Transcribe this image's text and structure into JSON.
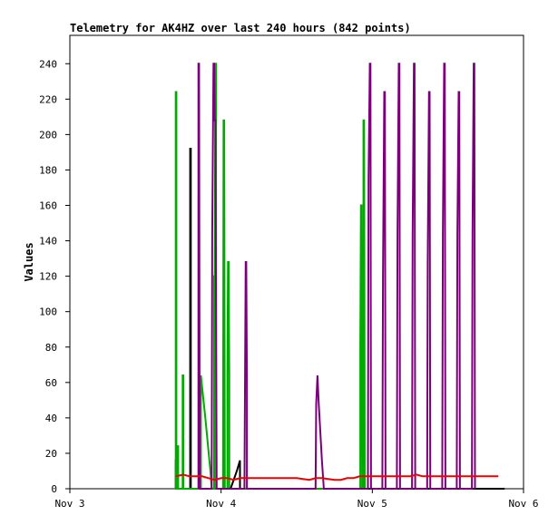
{
  "chart_data": {
    "type": "line",
    "title": "Telemetry for AK4HZ over last 240 hours (842 points)",
    "ylabel": "Values",
    "xlabel": "",
    "xlim": [
      0,
      72
    ],
    "ylim": [
      0,
      256
    ],
    "x_ticks": [
      {
        "value": 0,
        "label": "Nov 3"
      },
      {
        "value": 24,
        "label": "Nov 4"
      },
      {
        "value": 48,
        "label": "Nov 5"
      },
      {
        "value": 72,
        "label": "Nov 6"
      }
    ],
    "y_ticks": [
      0,
      20,
      40,
      60,
      80,
      100,
      120,
      140,
      160,
      180,
      200,
      220,
      240
    ],
    "grid": false,
    "legend": "none",
    "colors": {
      "black": "#000000",
      "green": "#00aa00",
      "purple": "#7a007a",
      "red": "#ee0000"
    },
    "series": [
      {
        "color": "#000000",
        "points": [
          [
            16.8,
            0
          ],
          [
            16.8,
            16
          ],
          [
            16.9,
            16
          ],
          [
            16.9,
            0
          ],
          [
            19.1,
            0
          ],
          [
            19.1,
            192
          ],
          [
            19.2,
            192
          ],
          [
            19.2,
            0
          ],
          [
            23.2,
            0
          ],
          [
            23.8,
            0
          ],
          [
            25.5,
            0
          ],
          [
            26.0,
            5
          ],
          [
            26.5,
            10
          ],
          [
            27.0,
            16
          ],
          [
            27.0,
            0
          ],
          [
            30.0,
            0
          ],
          [
            33.0,
            0
          ],
          [
            38.0,
            0
          ],
          [
            46.0,
            0
          ],
          [
            57.0,
            0
          ],
          [
            69.0,
            0
          ]
        ]
      },
      {
        "color": "#00aa00",
        "points": [
          [
            16.8,
            0
          ],
          [
            16.8,
            224
          ],
          [
            16.9,
            224
          ],
          [
            16.9,
            0
          ],
          [
            17.1,
            0
          ],
          [
            17.1,
            24
          ],
          [
            17.2,
            24
          ],
          [
            17.2,
            0
          ],
          [
            17.9,
            0
          ],
          [
            17.9,
            64
          ],
          [
            18.0,
            64
          ],
          [
            18.0,
            0
          ],
          [
            20.8,
            0
          ],
          [
            20.8,
            64
          ],
          [
            21.5,
            40
          ],
          [
            22.3,
            10
          ],
          [
            22.5,
            0
          ],
          [
            22.9,
            0
          ],
          [
            22.9,
            120
          ],
          [
            23.0,
            120
          ],
          [
            23.1,
            240
          ],
          [
            23.2,
            240
          ],
          [
            23.2,
            0
          ],
          [
            24.3,
            0
          ],
          [
            24.4,
            208
          ],
          [
            24.5,
            208
          ],
          [
            24.6,
            0
          ],
          [
            25.0,
            0
          ],
          [
            25.0,
            64
          ],
          [
            25.1,
            128
          ],
          [
            25.2,
            128
          ],
          [
            25.3,
            64
          ],
          [
            25.3,
            0
          ],
          [
            46.1,
            0
          ],
          [
            46.1,
            80
          ],
          [
            46.2,
            160
          ],
          [
            46.3,
            160
          ],
          [
            46.4,
            0
          ],
          [
            46.6,
            0
          ],
          [
            46.6,
            208
          ],
          [
            46.7,
            208
          ],
          [
            46.8,
            0
          ]
        ]
      },
      {
        "color": "#7a007a",
        "points": [
          [
            20.4,
            0
          ],
          [
            20.4,
            240
          ],
          [
            20.5,
            240
          ],
          [
            20.6,
            0
          ],
          [
            22.5,
            0
          ],
          [
            22.6,
            144
          ],
          [
            22.7,
            192
          ],
          [
            22.8,
            240
          ],
          [
            22.9,
            240
          ],
          [
            23.0,
            208
          ],
          [
            23.1,
            208
          ],
          [
            23.3,
            0
          ],
          [
            27.7,
            0
          ],
          [
            27.8,
            64
          ],
          [
            27.9,
            128
          ],
          [
            28.0,
            128
          ],
          [
            28.1,
            64
          ],
          [
            28.1,
            0
          ],
          [
            39.0,
            0
          ],
          [
            39.1,
            48
          ],
          [
            39.3,
            64
          ],
          [
            39.5,
            48
          ],
          [
            40.0,
            16
          ],
          [
            40.3,
            0
          ],
          [
            47.3,
            0
          ],
          [
            47.4,
            176
          ],
          [
            47.6,
            240
          ],
          [
            47.7,
            240
          ],
          [
            47.8,
            0
          ],
          [
            49.6,
            0
          ],
          [
            49.7,
            120
          ],
          [
            49.9,
            224
          ],
          [
            50.0,
            224
          ],
          [
            50.1,
            0
          ],
          [
            51.9,
            0
          ],
          [
            52.0,
            144
          ],
          [
            52.2,
            240
          ],
          [
            52.3,
            240
          ],
          [
            52.4,
            0
          ],
          [
            54.3,
            0
          ],
          [
            54.4,
            144
          ],
          [
            54.6,
            240
          ],
          [
            54.7,
            240
          ],
          [
            54.8,
            0
          ],
          [
            56.7,
            0
          ],
          [
            56.8,
            128
          ],
          [
            57.0,
            224
          ],
          [
            57.1,
            224
          ],
          [
            57.2,
            0
          ],
          [
            59.1,
            0
          ],
          [
            59.2,
            144
          ],
          [
            59.4,
            240
          ],
          [
            59.5,
            240
          ],
          [
            59.6,
            0
          ],
          [
            61.4,
            0
          ],
          [
            61.5,
            144
          ],
          [
            61.7,
            224
          ],
          [
            61.8,
            224
          ],
          [
            61.9,
            0
          ],
          [
            63.8,
            0
          ],
          [
            63.9,
            144
          ],
          [
            64.1,
            240
          ],
          [
            64.2,
            240
          ],
          [
            64.3,
            0
          ]
        ]
      },
      {
        "color": "#ee0000",
        "points": [
          [
            16.8,
            7
          ],
          [
            18.0,
            8
          ],
          [
            19.0,
            7
          ],
          [
            20.0,
            7
          ],
          [
            21.0,
            7
          ],
          [
            22.0,
            6
          ],
          [
            23.0,
            5
          ],
          [
            24.0,
            6
          ],
          [
            25.0,
            6
          ],
          [
            26.0,
            5
          ],
          [
            27.0,
            6
          ],
          [
            28.0,
            6
          ],
          [
            30.0,
            6
          ],
          [
            32.0,
            6
          ],
          [
            34.0,
            6
          ],
          [
            36.0,
            6
          ],
          [
            38.0,
            5
          ],
          [
            39.0,
            6
          ],
          [
            40.0,
            6
          ],
          [
            42.0,
            5
          ],
          [
            43.0,
            5
          ],
          [
            44.0,
            6
          ],
          [
            45.0,
            6
          ],
          [
            46.0,
            7
          ],
          [
            47.0,
            7
          ],
          [
            48.0,
            7
          ],
          [
            50.0,
            7
          ],
          [
            52.0,
            7
          ],
          [
            54.0,
            7
          ],
          [
            55.0,
            8
          ],
          [
            56.0,
            7
          ],
          [
            58.0,
            7
          ],
          [
            60.0,
            7
          ],
          [
            62.0,
            7
          ],
          [
            64.0,
            7
          ],
          [
            66.0,
            7
          ],
          [
            68.0,
            7
          ]
        ]
      }
    ]
  }
}
